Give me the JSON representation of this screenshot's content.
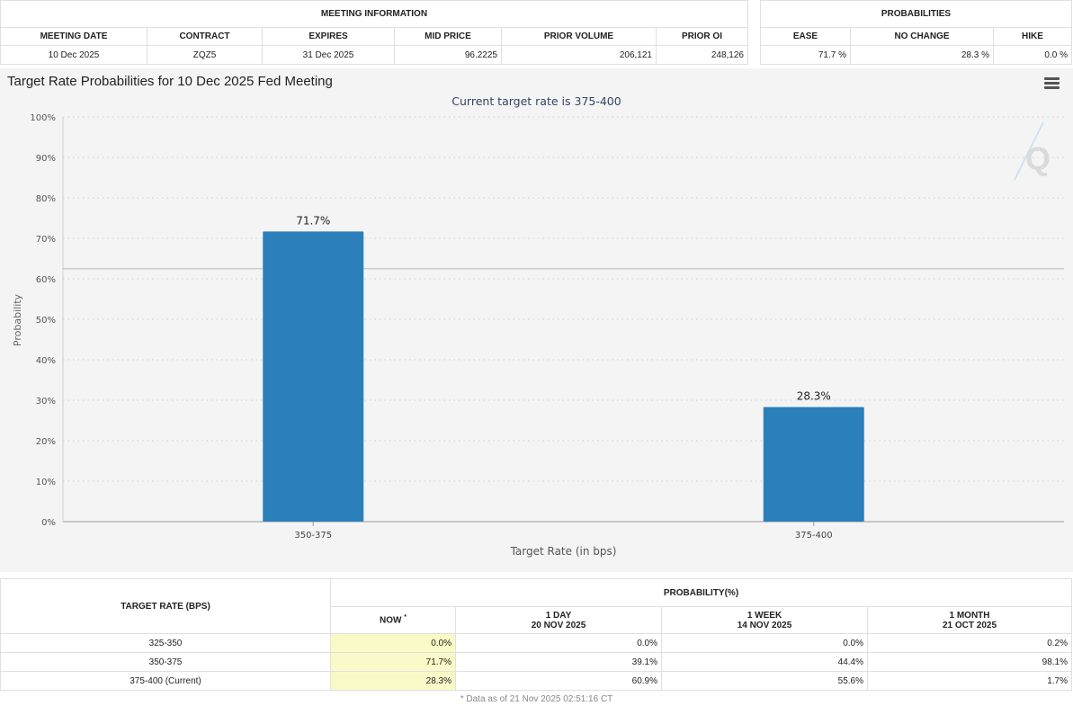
{
  "meeting_info": {
    "header": "MEETING INFORMATION",
    "columns": [
      "MEETING DATE",
      "CONTRACT",
      "EXPIRES",
      "MID PRICE",
      "PRIOR VOLUME",
      "PRIOR OI"
    ],
    "values": [
      "10 Dec 2025",
      "ZQZ5",
      "31 Dec 2025",
      "96.2225",
      "206,121",
      "248,126"
    ]
  },
  "probabilities": {
    "header": "PROBABILITIES",
    "columns": [
      "EASE",
      "NO CHANGE",
      "HIKE"
    ],
    "values": [
      "71.7 %",
      "28.3 %",
      "0.0 %"
    ]
  },
  "chart_data": {
    "type": "bar",
    "title": "Target Rate Probabilities for 10 Dec 2025 Fed Meeting",
    "subtitle": "Current target rate is 375-400",
    "xlabel": "Target Rate (in bps)",
    "ylabel": "Probability",
    "categories": [
      "350-375",
      "375-400"
    ],
    "values": [
      71.7,
      28.3
    ],
    "value_labels": [
      "71.7%",
      "28.3%"
    ],
    "ylim": [
      0,
      100
    ],
    "yticks": [
      "0%",
      "10%",
      "20%",
      "30%",
      "40%",
      "50%",
      "60%",
      "70%",
      "80%",
      "90%",
      "100%"
    ],
    "reference_line": 62.5,
    "grid": true,
    "bar_color": "#2b7fba",
    "watermark": "Q"
  },
  "bottom_table": {
    "target_header": "TARGET RATE (BPS)",
    "prob_header": "PROBABILITY(%)",
    "col_now": "NOW",
    "col_now_mark": "*",
    "col_day_top": "1 DAY",
    "col_day_bottom": "20 NOV 2025",
    "col_week_top": "1 WEEK",
    "col_week_bottom": "14 NOV 2025",
    "col_month_top": "1 MONTH",
    "col_month_bottom": "21 OCT 2025",
    "rows": [
      {
        "rate": "325-350",
        "now": "0.0%",
        "day": "0.0%",
        "week": "0.0%",
        "month": "0.2%"
      },
      {
        "rate": "350-375",
        "now": "71.7%",
        "day": "39.1%",
        "week": "44.4%",
        "month": "98.1%"
      },
      {
        "rate": "375-400 (Current)",
        "now": "28.3%",
        "day": "60.9%",
        "week": "55.6%",
        "month": "1.7%"
      }
    ],
    "footnote": "* Data as of 21 Nov 2025 02:51:16 CT"
  }
}
